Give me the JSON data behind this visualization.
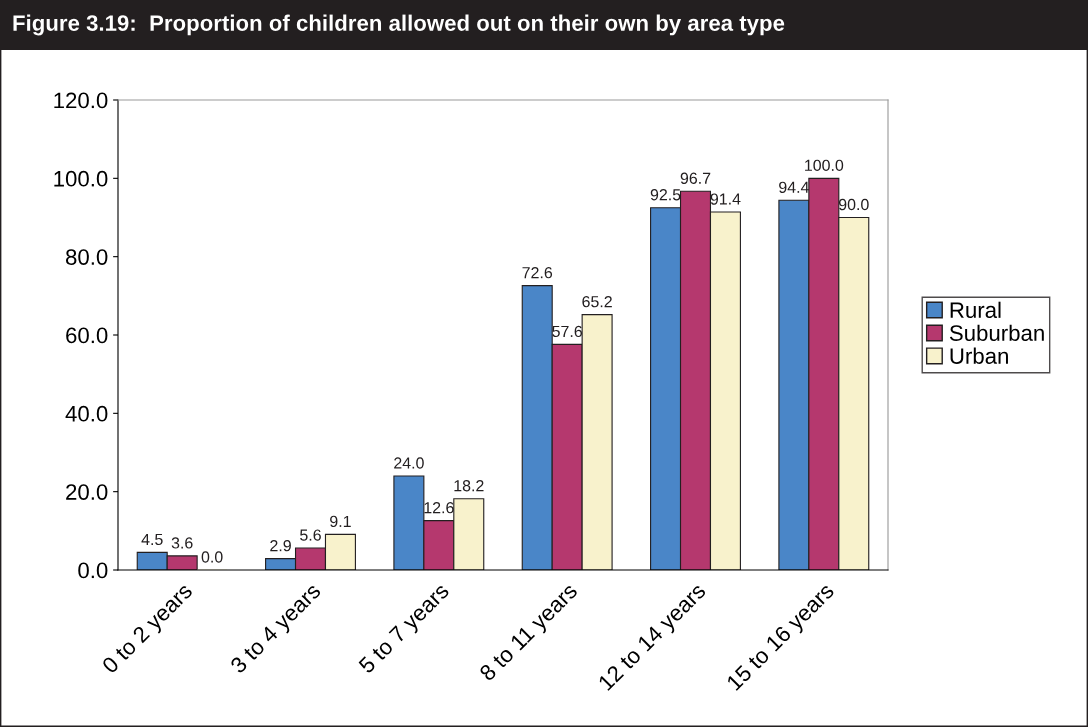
{
  "chart_data": {
    "type": "bar",
    "title": "Figure 3.19:  Proportion of children allowed out on their own by area type",
    "categories": [
      "0 to 2 years",
      "3 to 4 years",
      "5 to 7 years",
      "8 to 11 years",
      "12 to 14 years",
      "15 to 16 years"
    ],
    "series": [
      {
        "name": "Rural",
        "color": "#4a86c8",
        "values": [
          4.5,
          2.9,
          24.0,
          72.6,
          92.5,
          94.4
        ],
        "value_labels": [
          "4.5",
          "2.9",
          "24.0",
          "72.6",
          "92.5",
          "94.4"
        ]
      },
      {
        "name": "Suburban",
        "color": "#b5386e",
        "values": [
          3.6,
          5.6,
          12.6,
          57.6,
          96.7,
          100.0
        ],
        "value_labels": [
          "3.6",
          "5.6",
          "12.6",
          "57.6",
          "96.7",
          "100.0"
        ]
      },
      {
        "name": "Urban",
        "color": "#f8f2cc",
        "values": [
          0.0,
          9.1,
          18.2,
          65.2,
          91.4,
          90.0
        ],
        "value_labels": [
          "0.0",
          "9.1",
          "18.2",
          "65.2",
          "91.4",
          "90.0"
        ]
      }
    ],
    "ylim": [
      0,
      120
    ],
    "yticks": [
      {
        "value": 0,
        "label": "0.0"
      },
      {
        "value": 20,
        "label": "20.0"
      },
      {
        "value": 40,
        "label": "40.0"
      },
      {
        "value": 60,
        "label": "60.0"
      },
      {
        "value": 80,
        "label": "80.0"
      },
      {
        "value": 100,
        "label": "100.0"
      },
      {
        "value": 120,
        "label": "120.0"
      }
    ],
    "grid": false,
    "legend": "right"
  }
}
